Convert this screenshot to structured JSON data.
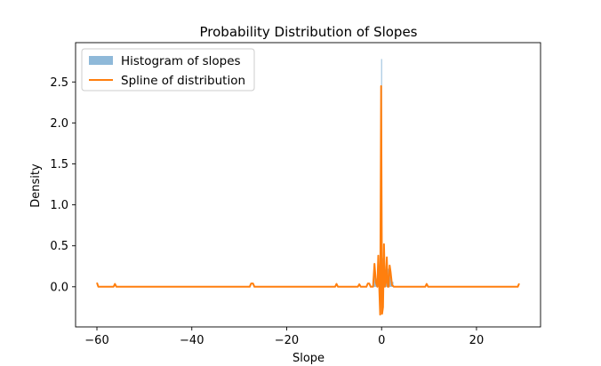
{
  "chart_data": {
    "type": "line",
    "title": "Probability Distribution of Slopes",
    "xlabel": "Slope",
    "ylabel": "Density",
    "xlim": [
      -64.5,
      33.5
    ],
    "ylim": [
      -0.49,
      2.98
    ],
    "xticks": [
      -60,
      -40,
      -20,
      0,
      20
    ],
    "xtick_labels": [
      "−60",
      "−40",
      "−20",
      "0",
      "20"
    ],
    "yticks": [
      0.0,
      0.5,
      1.0,
      1.5,
      2.0,
      2.5
    ],
    "ytick_labels": [
      "0.0",
      "0.5",
      "1.0",
      "1.5",
      "2.0",
      "2.5"
    ],
    "grid": false,
    "legend_position": "upper-left",
    "colors": {
      "histogram": "#8fb9d9",
      "spline": "#ff7f0e",
      "fill_zone": "#9a9a9a"
    },
    "series": [
      {
        "name": "Histogram of slopes",
        "kind": "histogram",
        "bins": [
          {
            "x0": -1.8,
            "x1": -1.5,
            "y": 0.12
          },
          {
            "x0": -1.5,
            "x1": -1.2,
            "y": 0.08
          },
          {
            "x0": -1.2,
            "x1": -0.9,
            "y": 0.1
          },
          {
            "x0": -0.9,
            "x1": -0.6,
            "y": 0.14
          },
          {
            "x0": -0.6,
            "x1": -0.3,
            "y": 0.22
          },
          {
            "x0": -0.3,
            "x1": -0.1,
            "y": 0.3
          },
          {
            "x0": -0.1,
            "x1": 0.1,
            "y": 2.78
          },
          {
            "x0": 0.1,
            "x1": 0.4,
            "y": 0.35
          },
          {
            "x0": 0.4,
            "x1": 0.8,
            "y": 0.25
          },
          {
            "x0": 0.8,
            "x1": 1.2,
            "y": 0.18
          },
          {
            "x0": 1.2,
            "x1": 1.6,
            "y": 0.22
          },
          {
            "x0": 1.6,
            "x1": 2.0,
            "y": 0.16
          },
          {
            "x0": 2.0,
            "x1": 2.5,
            "y": 0.06
          }
        ]
      },
      {
        "name": "Spline of distribution",
        "kind": "line",
        "points": [
          [
            -60.0,
            0.05
          ],
          [
            -59.7,
            0.0
          ],
          [
            -56.5,
            0.0
          ],
          [
            -56.2,
            0.035
          ],
          [
            -55.9,
            0.0
          ],
          [
            -27.8,
            0.0
          ],
          [
            -27.5,
            0.04
          ],
          [
            -27.1,
            0.04
          ],
          [
            -26.8,
            0.0
          ],
          [
            -9.8,
            0.0
          ],
          [
            -9.5,
            0.035
          ],
          [
            -9.2,
            0.0
          ],
          [
            -5.0,
            0.0
          ],
          [
            -4.7,
            0.03
          ],
          [
            -4.4,
            0.0
          ],
          [
            -3.2,
            0.0
          ],
          [
            -2.9,
            0.04
          ],
          [
            -2.6,
            0.04
          ],
          [
            -2.3,
            0.0
          ],
          [
            -1.8,
            0.0
          ],
          [
            -1.5,
            0.28
          ],
          [
            -1.2,
            0.05
          ],
          [
            -0.9,
            0.0
          ],
          [
            -0.7,
            0.38
          ],
          [
            -0.5,
            0.0
          ],
          [
            -0.3,
            -0.34
          ],
          [
            -0.1,
            2.45
          ],
          [
            0.1,
            -0.33
          ],
          [
            0.3,
            -0.25
          ],
          [
            0.5,
            0.52
          ],
          [
            0.7,
            0.0
          ],
          [
            0.9,
            0.05
          ],
          [
            1.1,
            0.36
          ],
          [
            1.3,
            0.0
          ],
          [
            1.5,
            0.0
          ],
          [
            1.7,
            0.26
          ],
          [
            1.9,
            0.18
          ],
          [
            2.2,
            0.02
          ],
          [
            2.6,
            0.0
          ],
          [
            9.2,
            0.0
          ],
          [
            9.5,
            0.035
          ],
          [
            9.8,
            0.0
          ],
          [
            28.7,
            0.0
          ],
          [
            29.0,
            0.04
          ]
        ]
      }
    ]
  }
}
